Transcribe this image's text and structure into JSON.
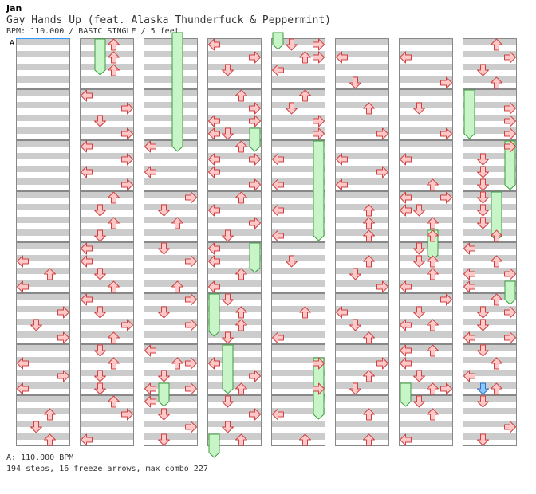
{
  "header": {
    "artist": "Jan",
    "title": "Gay Hands Up (feat. Alaska Thunderfuck & Peppermint)",
    "info": "BPM: 110.000 / BASIC SINGLE / 5 feet"
  },
  "chart": {
    "bpm_marker_label": "A",
    "colors": {
      "stripe": "#cccccc",
      "border": "#888888",
      "arrow_fill": "#ffc8c8",
      "arrow_stroke": "#d04040",
      "freeze_fill": "#c8f5c8",
      "freeze_stroke": "#3c9c3c",
      "blue_fill": "#8cc8ff",
      "blue_stroke": "#3070c0",
      "bpm_line": "#3399ff"
    },
    "measures_per_column": 8,
    "columns": 8,
    "arrow_legend": [
      "left",
      "down",
      "up",
      "right"
    ]
  },
  "footer": {
    "bpm_note": "A: 110.000 BPM",
    "stats": "194 steps, 16 freeze arrows, max combo 227"
  }
}
